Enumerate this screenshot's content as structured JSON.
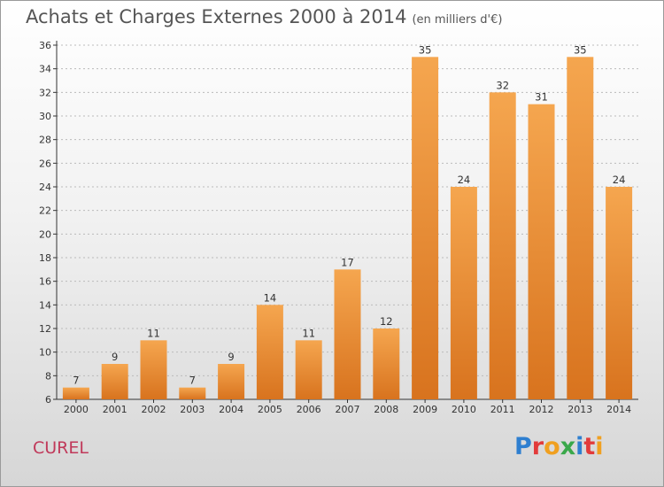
{
  "title": "Achats et Charges Externes 2000 à 2014",
  "unit": "(en milliers d'€)",
  "commune": "CUREL",
  "logo": {
    "text": "Proxiti",
    "letters": [
      {
        "ch": "P",
        "color": "#2e7fd0"
      },
      {
        "ch": "r",
        "color": "#e23b3b"
      },
      {
        "ch": "o",
        "color": "#f0a020"
      },
      {
        "ch": "x",
        "color": "#3aa84a"
      },
      {
        "ch": "i",
        "color": "#2e7fd0"
      },
      {
        "ch": "t",
        "color": "#e23b3b"
      },
      {
        "ch": "i",
        "color": "#f0a020"
      }
    ]
  },
  "colors": {
    "bar_light": "#f5a64f",
    "bar_dark": "#d8731e",
    "axis": "#333333",
    "grid": "#bbbbbb"
  },
  "chart_data": {
    "type": "bar",
    "title": "Achats et Charges Externes 2000 à 2014",
    "categories": [
      "2000",
      "2001",
      "2002",
      "2003",
      "2004",
      "2005",
      "2006",
      "2007",
      "2008",
      "2009",
      "2010",
      "2011",
      "2012",
      "2013",
      "2014"
    ],
    "values": [
      7,
      9,
      11,
      7,
      9,
      14,
      11,
      17,
      12,
      35,
      24,
      32,
      31,
      35,
      24
    ],
    "ylim": [
      6,
      36
    ],
    "yticks": [
      6,
      8,
      10,
      12,
      14,
      16,
      18,
      20,
      22,
      24,
      26,
      28,
      30,
      32,
      34,
      36
    ],
    "grid": true
  }
}
